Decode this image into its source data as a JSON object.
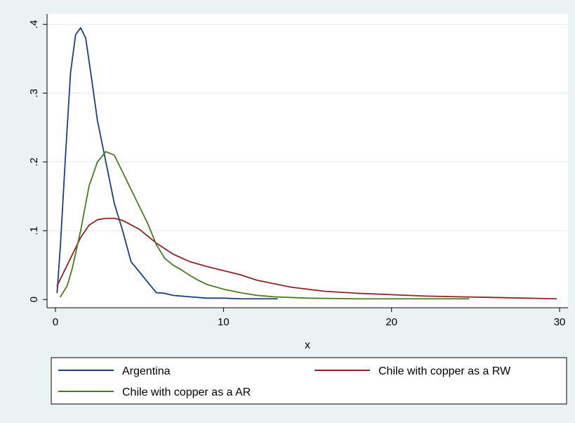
{
  "chart_data": {
    "type": "line",
    "title": "",
    "xlabel": "x",
    "ylabel": "",
    "xlim": [
      -0.5,
      30.5
    ],
    "ylim": [
      -0.012,
      0.415
    ],
    "xticks": [
      0,
      10,
      20,
      30
    ],
    "xtick_labels": [
      "0",
      "10",
      "20",
      "30"
    ],
    "yticks": [
      0,
      0.1,
      0.2,
      0.3,
      0.4
    ],
    "ytick_labels": [
      "0",
      ".1",
      ".2",
      ".3",
      ".4"
    ],
    "grid": true,
    "legend_position": "bottom",
    "series": [
      {
        "name": "Argentina",
        "color": "#1a3f7a",
        "x": [
          0.1,
          0.3,
          0.6,
          0.9,
          1.2,
          1.5,
          1.8,
          2.1,
          2.5,
          3.0,
          3.5,
          4.0,
          4.5,
          5.0,
          5.5,
          6.0,
          6.5,
          7.0,
          7.5,
          8.0,
          9.0,
          10.0,
          11.0,
          12.0,
          13.2
        ],
        "y": [
          0.01,
          0.08,
          0.21,
          0.33,
          0.385,
          0.395,
          0.38,
          0.33,
          0.26,
          0.2,
          0.14,
          0.1,
          0.055,
          0.04,
          0.025,
          0.01,
          0.009,
          0.006,
          0.005,
          0.004,
          0.002,
          0.002,
          0.001,
          0.001,
          0.001
        ]
      },
      {
        "name": "Chile with copper as a RW",
        "color": "#8b2525",
        "x": [
          0.1,
          0.5,
          1.0,
          1.5,
          2.0,
          2.5,
          3.0,
          3.5,
          4.0,
          5.0,
          6.0,
          7.0,
          8.0,
          9.0,
          10.0,
          11.0,
          12.0,
          13.0,
          14.0,
          16.0,
          18.0,
          20.0,
          22.0,
          24.0,
          26.0,
          28.0,
          29.8
        ],
        "y": [
          0.02,
          0.04,
          0.065,
          0.09,
          0.108,
          0.116,
          0.118,
          0.118,
          0.115,
          0.102,
          0.082,
          0.066,
          0.055,
          0.048,
          0.042,
          0.036,
          0.028,
          0.023,
          0.018,
          0.012,
          0.009,
          0.007,
          0.005,
          0.004,
          0.003,
          0.002,
          0.001
        ]
      },
      {
        "name": "Chile with copper as a AR",
        "color": "#4a7a22",
        "x": [
          0.3,
          0.7,
          1.0,
          1.5,
          2.0,
          2.5,
          3.0,
          3.5,
          4.0,
          4.5,
          5.0,
          5.5,
          6.0,
          6.5,
          7.0,
          7.5,
          8.0,
          8.5,
          9.0,
          10.0,
          11.0,
          12.0,
          13.0,
          15.0,
          18.0,
          20.0,
          22.0,
          24.6
        ],
        "y": [
          0.004,
          0.02,
          0.045,
          0.1,
          0.165,
          0.2,
          0.215,
          0.21,
          0.185,
          0.16,
          0.135,
          0.11,
          0.08,
          0.06,
          0.05,
          0.043,
          0.035,
          0.028,
          0.022,
          0.015,
          0.01,
          0.006,
          0.004,
          0.002,
          0.001,
          0.001,
          0.001,
          0.001
        ]
      }
    ]
  }
}
